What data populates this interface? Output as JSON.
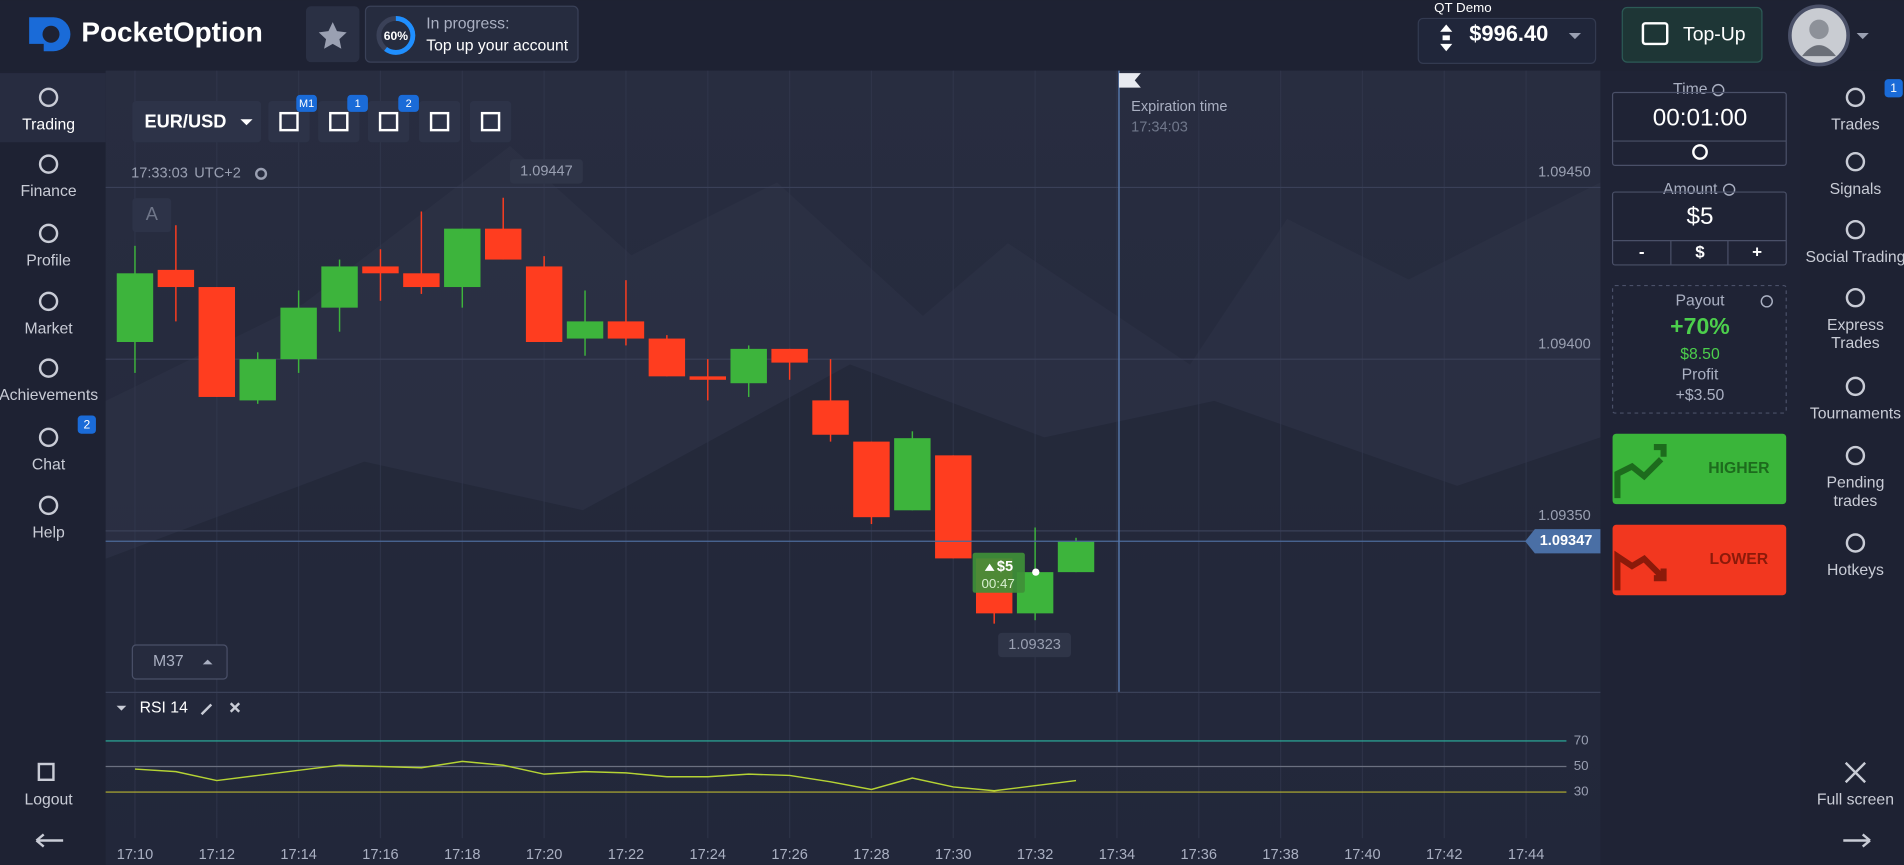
{
  "header": {
    "logo": "PocketOption",
    "progress": {
      "percent": "60%",
      "status": "In progress:",
      "message": "Top up your account"
    },
    "account_type": "QT Demo",
    "balance": "$996.40",
    "top_up": "Top-Up"
  },
  "left_nav": {
    "items": [
      {
        "label": "Trading"
      },
      {
        "label": "Finance"
      },
      {
        "label": "Profile"
      },
      {
        "label": "Market"
      },
      {
        "label": "Achievements"
      },
      {
        "label": "Chat",
        "badge": "2"
      },
      {
        "label": "Help"
      }
    ],
    "logout": "Logout"
  },
  "toolbar": {
    "pair": "EUR/USD",
    "badges": [
      "M1",
      "1",
      "2"
    ],
    "clock": "17:33:03",
    "timezone": "UTC+2",
    "drawing_tool": "A",
    "timeframe": "M37"
  },
  "chart": {
    "type": "candlestick",
    "x": [
      "17:10",
      "17:11",
      "17:12",
      "17:13",
      "17:14",
      "17:15",
      "17:16",
      "17:17",
      "17:18",
      "17:19",
      "17:20",
      "17:21",
      "17:22",
      "17:23",
      "17:24",
      "17:25",
      "17:26",
      "17:27",
      "17:28",
      "17:29",
      "17:30",
      "17:31",
      "17:32",
      "17:33"
    ],
    "open": [
      1.09405,
      1.09426,
      1.09421,
      1.09388,
      1.094,
      1.09415,
      1.09427,
      1.09425,
      1.09421,
      1.09438,
      1.09427,
      1.09406,
      1.09411,
      1.09406,
      1.09395,
      1.09393,
      1.09403,
      1.09388,
      1.09376,
      1.09356,
      1.09372,
      1.09342,
      1.09326,
      1.09338
    ],
    "close": [
      1.09425,
      1.09421,
      1.09389,
      1.094,
      1.09415,
      1.09427,
      1.09425,
      1.09421,
      1.09438,
      1.09429,
      1.09405,
      1.09411,
      1.09406,
      1.09395,
      1.09394,
      1.09403,
      1.09399,
      1.09378,
      1.09354,
      1.09377,
      1.09342,
      1.09326,
      1.09338,
      1.09347
    ],
    "high": [
      1.09433,
      1.09439,
      1.09421,
      1.09402,
      1.0942,
      1.09429,
      1.09432,
      1.09443,
      1.09438,
      1.09447,
      1.0943,
      1.0942,
      1.09423,
      1.09407,
      1.094,
      1.09404,
      1.09403,
      1.094,
      1.09376,
      1.09379,
      1.09372,
      1.09342,
      1.09351,
      1.09348
    ],
    "low": [
      1.09396,
      1.09411,
      1.09389,
      1.09387,
      1.09396,
      1.09408,
      1.09417,
      1.09419,
      1.09415,
      1.09429,
      1.09405,
      1.09401,
      1.09404,
      1.09395,
      1.09388,
      1.09389,
      1.09394,
      1.09376,
      1.09352,
      1.09356,
      1.09342,
      1.09323,
      1.09324,
      1.09338
    ],
    "colors": {
      "up": "#3db43c",
      "down": "#ff3d1f"
    },
    "ylim": [
      1.09303,
      1.09484
    ],
    "yticks": [
      {
        "value": 1.0945,
        "label": "1.09450"
      },
      {
        "value": 1.094,
        "label": "1.09400"
      },
      {
        "value": 1.0935,
        "label": "1.09350"
      }
    ],
    "xlim": [
      "17:09:17",
      "17:45:49"
    ],
    "xticks": [
      "17:10",
      "17:12",
      "17:14",
      "17:16",
      "17:18",
      "17:20",
      "17:22",
      "17:24",
      "17:26",
      "17:28",
      "17:30",
      "17:32",
      "17:34",
      "17:36",
      "17:38",
      "17:40",
      "17:42",
      "17:44"
    ],
    "high_label": 1.09447,
    "low_label": 1.09323,
    "current_price": 1.09347,
    "expiration": {
      "label": "Expiration time",
      "time": "17:34:03"
    },
    "trade": {
      "amount": "$5",
      "timer": "00:47"
    }
  },
  "rsi": {
    "label": "RSI 14",
    "color": "#b5d334",
    "values": [
      48,
      46,
      39,
      43,
      47,
      51,
      50,
      49,
      54,
      51,
      44,
      46,
      45,
      42,
      42,
      44,
      43,
      38,
      32,
      41,
      34,
      31,
      35,
      39
    ],
    "ylim": [
      -6,
      108
    ],
    "yticks": [
      70,
      50,
      30
    ],
    "tick_colors": [
      "#2bb5a0",
      "#6b7080",
      "#b9b52f"
    ]
  },
  "trade_panel": {
    "time": {
      "label": "Time",
      "value": "00:01:00"
    },
    "amount": {
      "label": "Amount",
      "value": "$5",
      "minus": "-",
      "currency": "$",
      "plus": "+"
    },
    "payout": {
      "label": "Payout",
      "percent": "+70%",
      "amount": "$8.50",
      "profit_label": "Profit",
      "profit": "+$3.50"
    },
    "higher": "HIGHER",
    "lower": "LOWER"
  },
  "right_nav": {
    "items": [
      {
        "label": [
          "Trades"
        ],
        "badge": "1"
      },
      {
        "label": [
          "Signals"
        ]
      },
      {
        "label": [
          "Social Trading"
        ]
      },
      {
        "label": [
          "Express",
          "Trades"
        ]
      },
      {
        "label": [
          "Tournaments"
        ]
      },
      {
        "label": [
          "Pending",
          "trades"
        ]
      },
      {
        "label": [
          "Hotkeys"
        ]
      }
    ],
    "full_screen": "Full screen"
  }
}
